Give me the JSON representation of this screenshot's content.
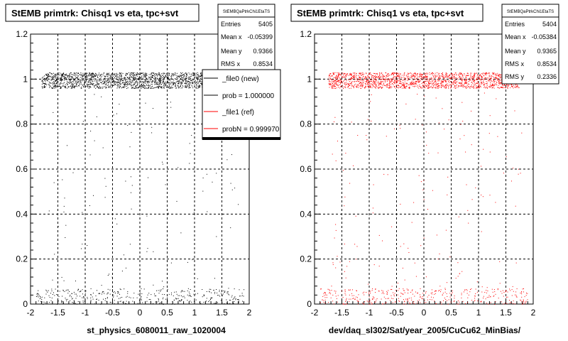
{
  "chart_data": [
    {
      "type": "scatter",
      "title": "StEMB primtrk: Chisq1 vs eta, tpc+svt",
      "xlabel": "st_physics_6080011_raw_1020004",
      "ylabel": "",
      "xlim": [
        -2,
        2
      ],
      "ylim": [
        0,
        1.2
      ],
      "x_ticks": [
        "-2",
        "-1.5",
        "-1",
        "-0.5",
        "0",
        "0.5",
        "1",
        "1.5",
        "2"
      ],
      "y_ticks": [
        "0",
        "0.2",
        "0.4",
        "0.6",
        "0.8",
        "1",
        "1.2"
      ],
      "grid": true,
      "stats": {
        "name": "StEMBQaPtrkChi1EtaTS",
        "rows": [
          {
            "label": "Entries",
            "value": "5405"
          },
          {
            "label": "Mean x",
            "value": "-0.05399"
          },
          {
            "label": "Mean y",
            "value": "0.9366"
          },
          {
            "label": "RMS x",
            "value": "0.8534"
          }
        ]
      },
      "legend": {
        "placement": "top-right",
        "entries": [
          {
            "label": "_file0 (new)",
            "color": "#000000"
          },
          {
            "label": "prob = 1.000000",
            "color": "#000000"
          },
          {
            "label": "_file1 (ref)",
            "color": "#ff0000"
          },
          {
            "label": "probN = 0.999970",
            "color": "#ff0000"
          }
        ]
      },
      "series": [
        {
          "color": "#000000",
          "bands": [
            {
              "x": [
                -1.8,
                1.4
              ],
              "y": [
                0.96,
                1.03
              ],
              "count": 1800
            },
            {
              "x": [
                -1.9,
                1.9
              ],
              "y": [
                0.0,
                0.07
              ],
              "count": 380
            },
            {
              "x": [
                -1.7,
                1.8
              ],
              "y": [
                0.07,
                0.95
              ],
              "count": 110
            }
          ]
        }
      ]
    },
    {
      "type": "scatter",
      "title": "StEMB primtrk: Chisq1 vs eta, tpc+svt",
      "xlabel": "dev/daq_sl302/Sat/year_2005/CuCu62_MinBias/",
      "ylabel": "",
      "xlim": [
        -2,
        2
      ],
      "ylim": [
        0,
        1.2
      ],
      "x_ticks": [
        "-2",
        "-1.5",
        "-1",
        "-0.5",
        "0",
        "0.5",
        "1",
        "1.5",
        "2"
      ],
      "y_ticks": [
        "0",
        "0.2",
        "0.4",
        "0.6",
        "0.8",
        "1",
        "1.2"
      ],
      "grid": true,
      "stats": {
        "name": "StEMBQaPtrkChi1EtaTS",
        "rows": [
          {
            "label": "Entries",
            "value": "5404"
          },
          {
            "label": "Mean x",
            "value": "-0.05384"
          },
          {
            "label": "Mean y",
            "value": "0.9365"
          },
          {
            "label": "RMS x",
            "value": "0.8534"
          },
          {
            "label": "RMS y",
            "value": "0.2336"
          }
        ]
      },
      "series": [
        {
          "color": "#ff0000",
          "bands": [
            {
              "x": [
                -1.75,
                1.75
              ],
              "y": [
                0.96,
                1.03
              ],
              "count": 1800
            },
            {
              "x": [
                -1.9,
                1.9
              ],
              "y": [
                0.0,
                0.07
              ],
              "count": 380
            },
            {
              "x": [
                -1.7,
                1.8
              ],
              "y": [
                0.07,
                0.95
              ],
              "count": 150
            }
          ]
        }
      ]
    }
  ]
}
